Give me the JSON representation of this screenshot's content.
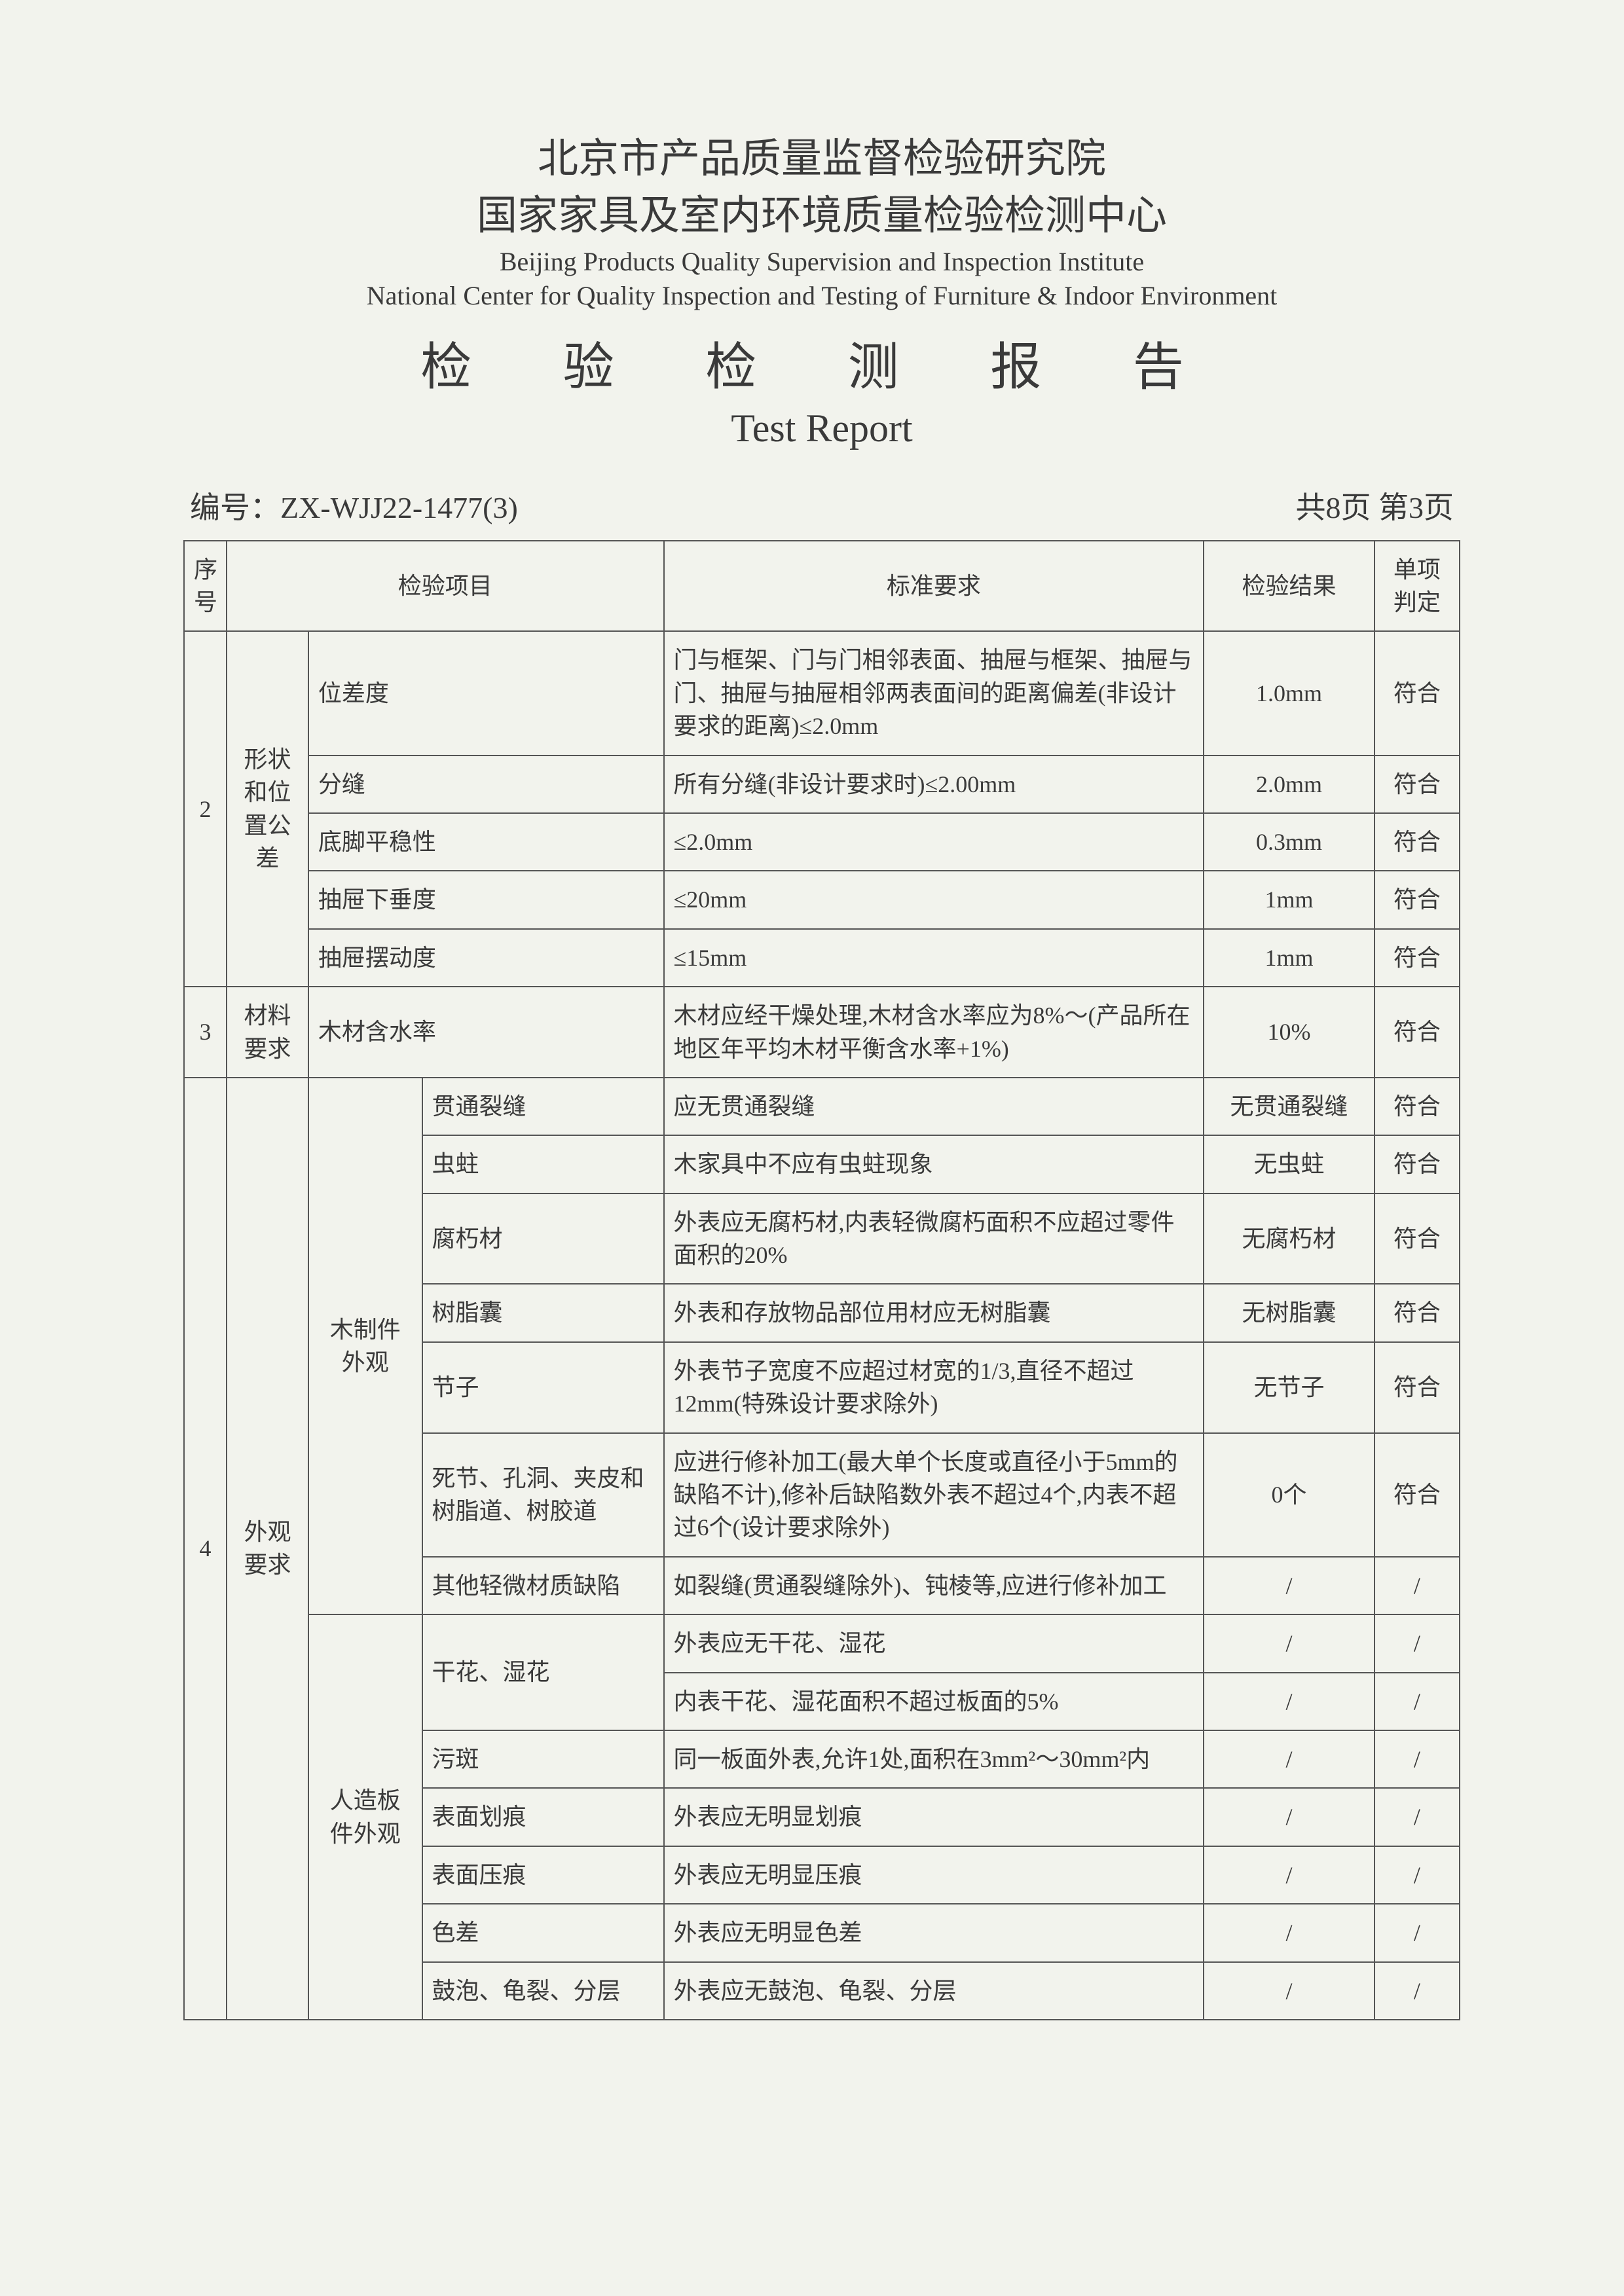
{
  "header": {
    "org_cn_line1": "北京市产品质量监督检验研究院",
    "org_cn_line2": "国家家具及室内环境质量检验检测中心",
    "org_en_line1": "Beijing Products Quality Supervision and Inspection Institute",
    "org_en_line2": "National Center for Quality Inspection and Testing of Furniture &  Indoor Environment",
    "report_cn": "检 验 检 测 报 告",
    "report_en": "Test Report"
  },
  "meta": {
    "number_label": "编号：",
    "number_value": "ZX-WJJ22-1477(3)",
    "page_info": "共8页  第3页"
  },
  "table": {
    "head": {
      "seq": "序号",
      "item": "检验项目",
      "standard": "标准要求",
      "result": "检验结果",
      "judge": "单项判定"
    },
    "groups": [
      {
        "seq": "2",
        "category": "形状和位置公差",
        "rows": [
          {
            "item": "位差度",
            "standard": "门与框架、门与门相邻表面、抽屉与框架、抽屉与门、抽屉与抽屉相邻两表面间的距离偏差(非设计要求的距离)≤2.0mm",
            "result": "1.0mm",
            "judge": "符合"
          },
          {
            "item": "分缝",
            "standard": "所有分缝(非设计要求时)≤2.00mm",
            "result": "2.0mm",
            "judge": "符合"
          },
          {
            "item": "底脚平稳性",
            "standard": "≤2.0mm",
            "result": "0.3mm",
            "judge": "符合"
          },
          {
            "item": "抽屉下垂度",
            "standard": "≤20mm",
            "result": "1mm",
            "judge": "符合"
          },
          {
            "item": "抽屉摆动度",
            "standard": "≤15mm",
            "result": "1mm",
            "judge": "符合"
          }
        ]
      },
      {
        "seq": "3",
        "category": "材料要求",
        "rows": [
          {
            "item": "木材含水率",
            "standard": "木材应经干燥处理,木材含水率应为8%～(产品所在地区年平均木材平衡含水率+1%)",
            "result": "10%",
            "judge": "符合"
          }
        ]
      },
      {
        "seq": "4",
        "category": "外观要求",
        "subgroups": [
          {
            "subcat": "木制件外观",
            "rows": [
              {
                "item": "贯通裂缝",
                "standard": "应无贯通裂缝",
                "result": "无贯通裂缝",
                "judge": "符合"
              },
              {
                "item": "虫蛀",
                "standard": "木家具中不应有虫蛀现象",
                "result": "无虫蛀",
                "judge": "符合"
              },
              {
                "item": "腐朽材",
                "standard": "外表应无腐朽材,内表轻微腐朽面积不应超过零件面积的20%",
                "result": "无腐朽材",
                "judge": "符合"
              },
              {
                "item": "树脂囊",
                "standard": "外表和存放物品部位用材应无树脂囊",
                "result": "无树脂囊",
                "judge": "符合"
              },
              {
                "item": "节子",
                "standard": "外表节子宽度不应超过材宽的1/3,直径不超过12mm(特殊设计要求除外)",
                "result": "无节子",
                "judge": "符合"
              },
              {
                "item": "死节、孔洞、夹皮和树脂道、树胶道",
                "standard": "应进行修补加工(最大单个长度或直径小于5mm的缺陷不计),修补后缺陷数外表不超过4个,内表不超过6个(设计要求除外)",
                "result": "0个",
                "judge": "符合"
              },
              {
                "item": "其他轻微材质缺陷",
                "standard": "如裂缝(贯通裂缝除外)、钝棱等,应进行修补加工",
                "result": "/",
                "judge": "/"
              }
            ]
          },
          {
            "subcat": "人造板件外观",
            "rows": [
              {
                "item": "干花、湿花",
                "rowspan": 2,
                "standard": "外表应无干花、湿花",
                "result": "/",
                "judge": "/"
              },
              {
                "standard": "内表干花、湿花面积不超过板面的5%",
                "result": "/",
                "judge": "/"
              },
              {
                "item": "污斑",
                "standard": "同一板面外表,允许1处,面积在3mm²～30mm²内",
                "result": "/",
                "judge": "/"
              },
              {
                "item": "表面划痕",
                "standard": "外表应无明显划痕",
                "result": "/",
                "judge": "/"
              },
              {
                "item": "表面压痕",
                "standard": "外表应无明显压痕",
                "result": "/",
                "judge": "/"
              },
              {
                "item": "色差",
                "standard": "外表应无明显色差",
                "result": "/",
                "judge": "/"
              },
              {
                "item": "鼓泡、龟裂、分层",
                "standard": "外表应无鼓泡、龟裂、分层",
                "result": "/",
                "judge": "/"
              }
            ]
          }
        ]
      }
    ]
  },
  "style": {
    "bg": "#f2f3ed",
    "border": "#555555",
    "text": "#3a3a3a",
    "header_cn_fontsize": 62,
    "header_en_fontsize": 40,
    "title_cn_fontsize": 78,
    "title_en_fontsize": 60,
    "meta_fontsize": 46,
    "cell_fontsize": 36
  }
}
